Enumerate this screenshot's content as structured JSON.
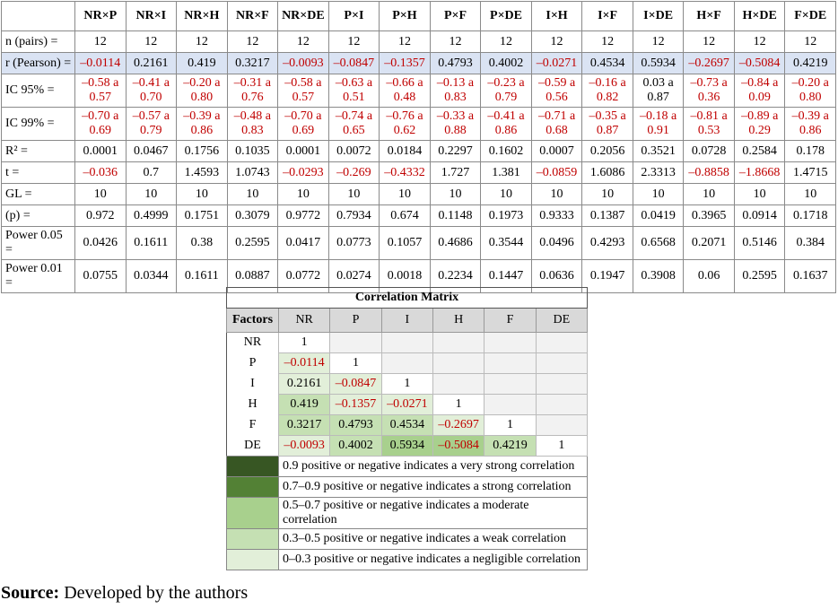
{
  "table": {
    "header": [
      "NR×P",
      "NR×I",
      "NR×H",
      "NR×F",
      "NR×DE",
      "P×I",
      "P×H",
      "P×F",
      "P×DE",
      "I×H",
      "I×F",
      "I×DE",
      "H×F",
      "H×DE",
      "F×DE"
    ],
    "rows": [
      {
        "label": "n (pairs) =",
        "values": [
          "12",
          "12",
          "12",
          "12",
          "12",
          "12",
          "12",
          "12",
          "12",
          "12",
          "12",
          "12",
          "12",
          "12",
          "12"
        ]
      },
      {
        "label": "r (Pearson) =",
        "highlight": "#dae3f3",
        "values": [
          "–0.0114",
          "0.2161",
          "0.419",
          "0.3217",
          "–0.0093",
          "–0.0847",
          "–0.1357",
          "0.4793",
          "0.4002",
          "–0.0271",
          "0.4534",
          "0.5934",
          "–0.2697",
          "–0.5084",
          "0.4219"
        ]
      },
      {
        "label": "IC 95% =",
        "values": [
          "–0.58 a 0.57",
          "–0.41 a 0.70",
          "–0.20 a 0.80",
          "–0.31 a 0.76",
          "–0.58 a 0.57",
          "–0.63 a 0.51",
          "–0.66 a 0.48",
          "–0.13 a 0.83",
          "–0.23 a 0.79",
          "–0.59 a 0.56",
          "–0.16 a 0.82",
          "0.03 a 0.87",
          "–0.73 a 0.36",
          "–0.84 a 0.09",
          "–0.20 a 0.80"
        ]
      },
      {
        "label": "IC 99% =",
        "values": [
          "–0.70 a 0.69",
          "–0.57 a 0.79",
          "–0.39 a 0.86",
          "–0.48 a 0.83",
          "–0.70 a 0.69",
          "–0.74 a 0.65",
          "–0.76 a 0.62",
          "–0.33 a 0.88",
          "–0.41 a 0.86",
          "–0.71 a 0.68",
          "–0.35 a 0.87",
          "–0.18 a 0.91",
          "–0.81 a 0.53",
          "–0.89 a 0.29",
          "–0.39 a 0.86"
        ]
      },
      {
        "label": "R² =",
        "values": [
          "0.0001",
          "0.0467",
          "0.1756",
          "0.1035",
          "0.0001",
          "0.0072",
          "0.0184",
          "0.2297",
          "0.1602",
          "0.0007",
          "0.2056",
          "0.3521",
          "0.0728",
          "0.2584",
          "0.178"
        ]
      },
      {
        "label": "t =",
        "values": [
          "–0.036",
          "0.7",
          "1.4593",
          "1.0743",
          "–0.0293",
          "–0.269",
          "–0.4332",
          "1.727",
          "1.381",
          "–0.0859",
          "1.6086",
          "2.3313",
          "–0.8858",
          "–1.8668",
          "1.4715"
        ]
      },
      {
        "label": "GL =",
        "values": [
          "10",
          "10",
          "10",
          "10",
          "10",
          "10",
          "10",
          "10",
          "10",
          "10",
          "10",
          "10",
          "10",
          "10",
          "10"
        ]
      },
      {
        "label": "(p) =",
        "values": [
          "0.972",
          "0.4999",
          "0.1751",
          "0.3079",
          "0.9772",
          "0.7934",
          "0.674",
          "0.1148",
          "0.1973",
          "0.9333",
          "0.1387",
          "0.0419",
          "0.3965",
          "0.0914",
          "0.1718"
        ]
      },
      {
        "label": "Power 0.05 =",
        "values": [
          "0.0426",
          "0.1611",
          "0.38",
          "0.2595",
          "0.0417",
          "0.0773",
          "0.1057",
          "0.4686",
          "0.3544",
          "0.0496",
          "0.4293",
          "0.6568",
          "0.2071",
          "0.5146",
          "0.384"
        ]
      },
      {
        "label": "Power 0.01 =",
        "values": [
          "0.0755",
          "0.0344",
          "0.1611",
          "0.0887",
          "0.0772",
          "0.0274",
          "0.0018",
          "0.2234",
          "0.1447",
          "0.0636",
          "0.1947",
          "0.3908",
          "0.06",
          "0.2595",
          "0.1637"
        ]
      }
    ]
  },
  "matrix": {
    "title": "Correlation Matrix",
    "header": [
      "Factors",
      "NR",
      "P",
      "I",
      "H",
      "F",
      "DE"
    ],
    "rows": [
      {
        "label": "NR",
        "cells": [
          "1"
        ],
        "fills": [
          "#ffffff"
        ]
      },
      {
        "label": "P",
        "cells": [
          "–0.0114",
          "1"
        ],
        "fills": [
          "#e2efd9",
          "#ffffff"
        ]
      },
      {
        "label": "I",
        "cells": [
          "0.2161",
          "–0.0847",
          "1"
        ],
        "fills": [
          "#e2efd9",
          "#e2efd9",
          "#ffffff"
        ]
      },
      {
        "label": "H",
        "cells": [
          "0.419",
          "–0.1357",
          "–0.0271",
          "1"
        ],
        "fills": [
          "#c5e0b3",
          "#e2efd9",
          "#e2efd9",
          "#ffffff"
        ]
      },
      {
        "label": "F",
        "cells": [
          "0.3217",
          "0.4793",
          "0.4534",
          "–0.2697",
          "1"
        ],
        "fills": [
          "#c5e0b3",
          "#c5e0b3",
          "#c5e0b3",
          "#e2efd9",
          "#ffffff"
        ]
      },
      {
        "label": "DE",
        "cells": [
          "–0.0093",
          "0.4002",
          "0.5934",
          "–0.5084",
          "0.4219",
          "1"
        ],
        "fills": [
          "#e2efd9",
          "#c5e0b3",
          "#a8d08d",
          "#a8d08d",
          "#c5e0b3",
          "#ffffff"
        ]
      }
    ],
    "legend": [
      {
        "color": "#375623",
        "text": "0.9 positive or negative indicates a very strong correlation"
      },
      {
        "color": "#538135",
        "text": "0.7–0.9 positive or negative indicates a strong correlation"
      },
      {
        "color": "#a8d08d",
        "text": "0.5–0.7 positive or negative indicates a moderate correlation"
      },
      {
        "color": "#c5e0b3",
        "text": "0.3–0.5 positive or negative indicates a weak correlation"
      },
      {
        "color": "#e2efd9",
        "text": "0–0.3 positive or negative indicates a negligible correlation"
      }
    ]
  },
  "source": {
    "label": "Source:",
    "text": "Developed by the authors"
  }
}
